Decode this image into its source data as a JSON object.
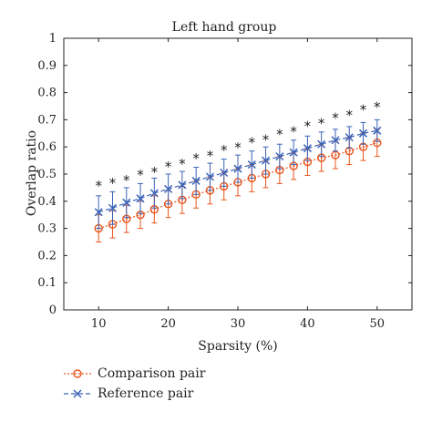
{
  "chart_data": {
    "type": "line",
    "title": "Left hand group",
    "xlabel": "Sparsity (%)",
    "ylabel": "Overlap ratio",
    "xlim": [
      5,
      55
    ],
    "ylim": [
      0,
      1
    ],
    "xticks": [
      10,
      20,
      30,
      40,
      50
    ],
    "yticks": [
      0,
      0.1,
      0.2,
      0.3,
      0.4,
      0.5,
      0.6,
      0.7,
      0.8,
      0.9,
      1
    ],
    "grid": false,
    "legend_position": "bottom-left",
    "x": [
      10,
      12,
      14,
      16,
      18,
      20,
      22,
      24,
      26,
      28,
      30,
      32,
      34,
      36,
      38,
      40,
      42,
      44,
      46,
      48,
      50
    ],
    "series": [
      {
        "name": "Comparison pair",
        "color": "#e8561e",
        "marker": "circle",
        "values": [
          0.3,
          0.315,
          0.335,
          0.35,
          0.37,
          0.39,
          0.405,
          0.425,
          0.44,
          0.455,
          0.47,
          0.485,
          0.5,
          0.515,
          0.53,
          0.545,
          0.56,
          0.57,
          0.585,
          0.6,
          0.615
        ],
        "error": [
          0.05,
          0.05,
          0.05,
          0.05,
          0.05,
          0.05,
          0.05,
          0.05,
          0.05,
          0.05,
          0.05,
          0.05,
          0.05,
          0.05,
          0.05,
          0.05,
          0.05,
          0.05,
          0.05,
          0.05,
          0.05
        ]
      },
      {
        "name": "Reference pair",
        "color": "#3a63b8",
        "marker": "cross",
        "values": [
          0.36,
          0.375,
          0.395,
          0.41,
          0.43,
          0.445,
          0.46,
          0.475,
          0.49,
          0.505,
          0.52,
          0.535,
          0.55,
          0.565,
          0.58,
          0.595,
          0.61,
          0.625,
          0.635,
          0.65,
          0.66
        ],
        "error": [
          0.06,
          0.06,
          0.055,
          0.055,
          0.055,
          0.055,
          0.05,
          0.05,
          0.05,
          0.05,
          0.05,
          0.05,
          0.05,
          0.045,
          0.045,
          0.045,
          0.045,
          0.04,
          0.04,
          0.04,
          0.04
        ]
      }
    ],
    "annotations": {
      "symbol": "*",
      "y": [
        0.47,
        0.48,
        0.49,
        0.51,
        0.52,
        0.54,
        0.55,
        0.57,
        0.58,
        0.6,
        0.61,
        0.63,
        0.64,
        0.66,
        0.67,
        0.69,
        0.7,
        0.72,
        0.73,
        0.75,
        0.76
      ]
    }
  }
}
